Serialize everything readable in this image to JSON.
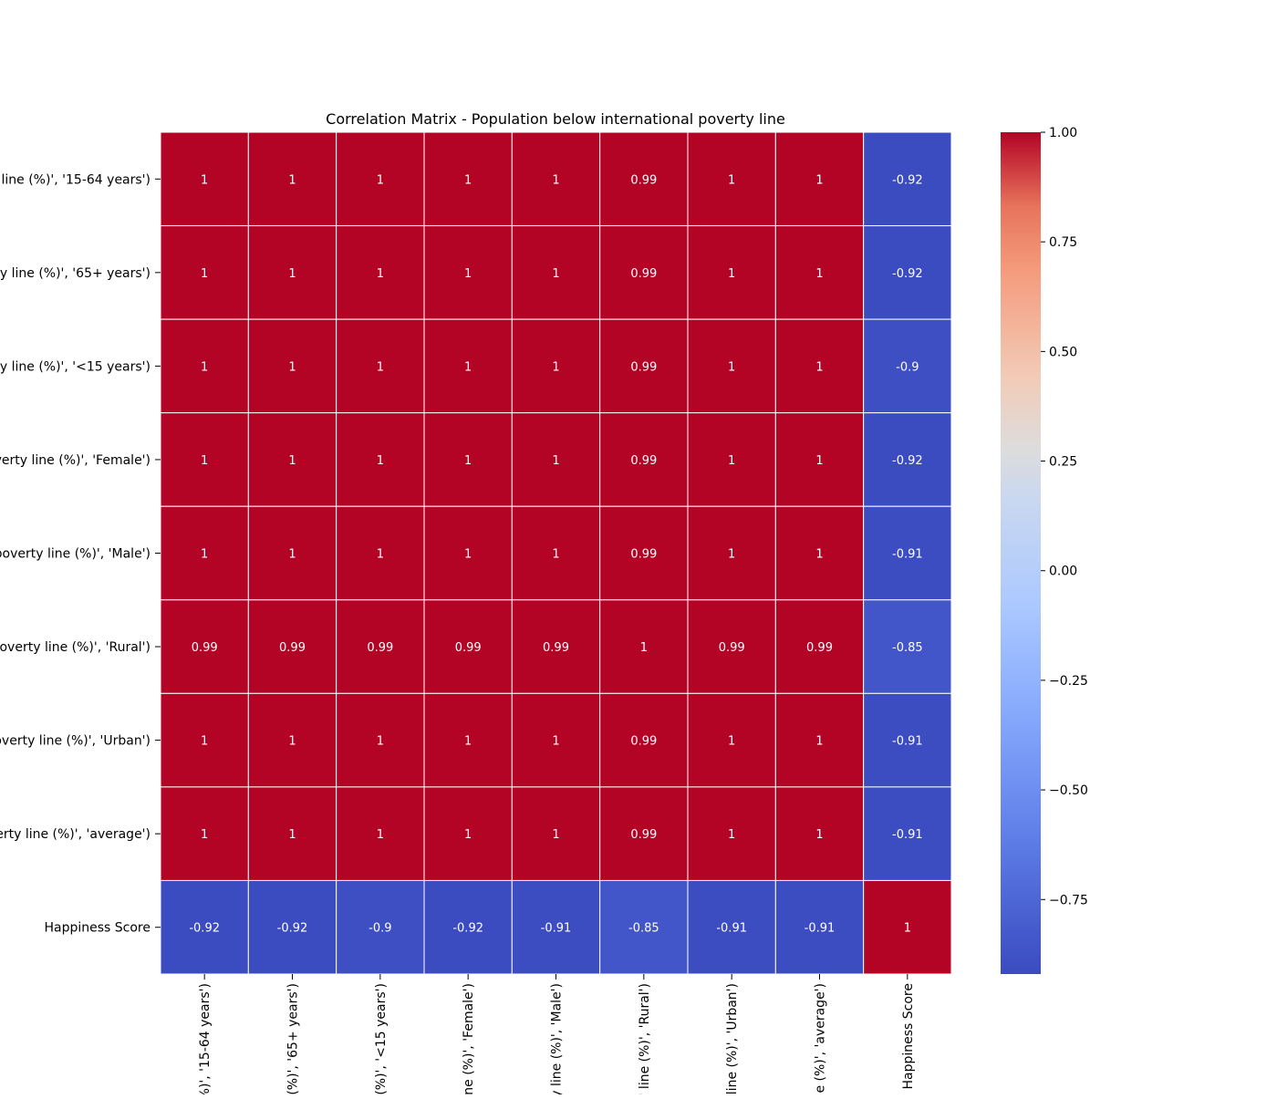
{
  "chart_data": {
    "type": "heatmap",
    "title": "Correlation Matrix - Population below international poverty line",
    "row_labels": [
      "line (%)', '15-64 years')",
      "ty line (%)', '65+ years')",
      "ty line (%)', '<15 years')",
      "verty line (%)', 'Female')",
      "poverty line (%)', 'Male')",
      "poverty line (%)', 'Rural')",
      "overty line (%)', 'Urban')",
      "erty line (%)', 'average')",
      "Happiness Score"
    ],
    "column_labels": [
      "%)', '15-64 years')",
      "(%)', '65+ years')",
      "(%)', '<15 years')",
      "ne (%)', 'Female')",
      "y line (%)', 'Male')",
      "' line (%)', 'Rural')",
      "line (%)', 'Urban')",
      "e (%)', 'average')",
      "Happiness Score"
    ],
    "values": [
      [
        1,
        1,
        1,
        1,
        1,
        0.99,
        1,
        1,
        -0.92
      ],
      [
        1,
        1,
        1,
        1,
        1,
        0.99,
        1,
        1,
        -0.92
      ],
      [
        1,
        1,
        1,
        1,
        1,
        0.99,
        1,
        1,
        -0.9
      ],
      [
        1,
        1,
        1,
        1,
        1,
        0.99,
        1,
        1,
        -0.92
      ],
      [
        1,
        1,
        1,
        1,
        1,
        0.99,
        1,
        1,
        -0.91
      ],
      [
        0.99,
        0.99,
        0.99,
        0.99,
        0.99,
        1,
        0.99,
        0.99,
        -0.85
      ],
      [
        1,
        1,
        1,
        1,
        1,
        0.99,
        1,
        1,
        -0.91
      ],
      [
        1,
        1,
        1,
        1,
        1,
        0.99,
        1,
        1,
        -0.91
      ],
      [
        -0.92,
        -0.92,
        -0.9,
        -0.92,
        -0.91,
        -0.85,
        -0.91,
        -0.91,
        1
      ]
    ],
    "cell_labels": [
      [
        "1",
        "1",
        "1",
        "1",
        "1",
        "0.99",
        "1",
        "1",
        "-0.92"
      ],
      [
        "1",
        "1",
        "1",
        "1",
        "1",
        "0.99",
        "1",
        "1",
        "-0.92"
      ],
      [
        "1",
        "1",
        "1",
        "1",
        "1",
        "0.99",
        "1",
        "1",
        "-0.9"
      ],
      [
        "1",
        "1",
        "1",
        "1",
        "1",
        "0.99",
        "1",
        "1",
        "-0.92"
      ],
      [
        "1",
        "1",
        "1",
        "1",
        "1",
        "0.99",
        "1",
        "1",
        "-0.91"
      ],
      [
        "0.99",
        "0.99",
        "0.99",
        "0.99",
        "0.99",
        "1",
        "0.99",
        "0.99",
        "-0.85"
      ],
      [
        "1",
        "1",
        "1",
        "1",
        "1",
        "0.99",
        "1",
        "1",
        "-0.91"
      ],
      [
        "1",
        "1",
        "1",
        "1",
        "1",
        "0.99",
        "1",
        "1",
        "-0.91"
      ],
      [
        "-0.92",
        "-0.92",
        "-0.9",
        "-0.92",
        "-0.91",
        "-0.85",
        "-0.91",
        "-0.91",
        "1"
      ]
    ],
    "colormap": "coolwarm",
    "colorbar": {
      "range": [
        -0.92,
        1.0
      ],
      "ticks": [
        1.0,
        0.75,
        0.5,
        0.25,
        0.0,
        -0.25,
        -0.5,
        -0.75
      ],
      "tick_labels": [
        "1.00",
        "0.75",
        "0.50",
        "0.25",
        "0.00",
        "−0.25",
        "−0.50",
        "−0.75"
      ]
    },
    "grid": false,
    "colors": {
      "cell_border": "#ffffff",
      "cell_text": "#ffffff",
      "axis_text": "#000000"
    }
  }
}
